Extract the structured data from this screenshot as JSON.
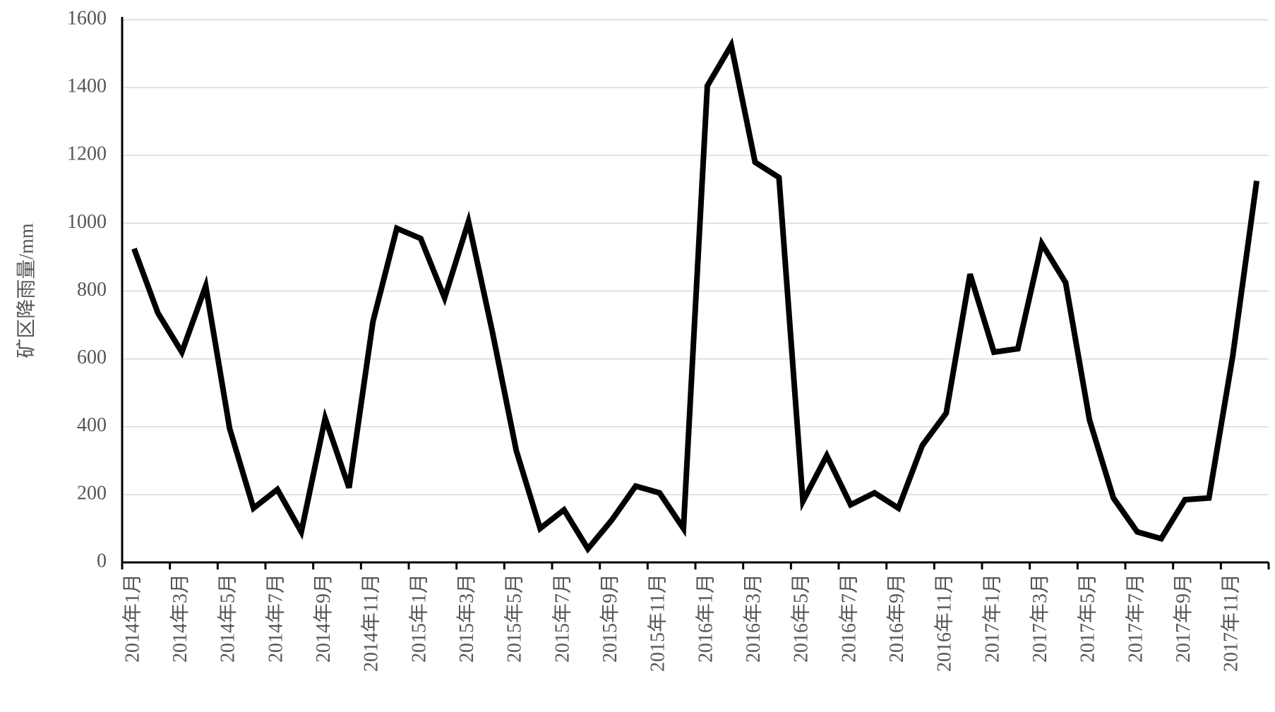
{
  "chart_data": {
    "type": "line",
    "y_label": "矿区降雨量/mm",
    "categories": [
      "2014年1月",
      null,
      "2014年3月",
      null,
      "2014年5月",
      null,
      "2014年7月",
      null,
      "2014年9月",
      null,
      "2014年11月",
      null,
      "2015年1月",
      null,
      "2015年3月",
      null,
      "2015年5月",
      null,
      "2015年7月",
      null,
      "2015年9月",
      null,
      "2015年11月",
      null,
      "2016年1月",
      null,
      "2016年3月",
      null,
      "2016年5月",
      null,
      "2016年7月",
      null,
      "2016年9月",
      null,
      "2016年11月",
      null,
      "2017年1月",
      null,
      "2017年3月",
      null,
      "2017年5月",
      null,
      "2017年7月",
      null,
      "2017年9月",
      null,
      "2017年11月",
      null
    ],
    "values": [
      925,
      735,
      620,
      815,
      395,
      160,
      215,
      90,
      425,
      220,
      710,
      985,
      955,
      780,
      1005,
      680,
      330,
      100,
      155,
      40,
      125,
      225,
      205,
      100,
      1405,
      1525,
      1180,
      1135,
      180,
      315,
      170,
      205,
      160,
      345,
      440,
      850,
      620,
      630,
      940,
      825,
      420,
      190,
      90,
      70,
      185,
      190,
      610,
      1125
    ],
    "color": "#000000",
    "ylim": [
      0,
      1600
    ],
    "yticks": [
      0,
      200,
      400,
      600,
      800,
      1000,
      1200,
      1400,
      1600
    ],
    "grid": true
  }
}
